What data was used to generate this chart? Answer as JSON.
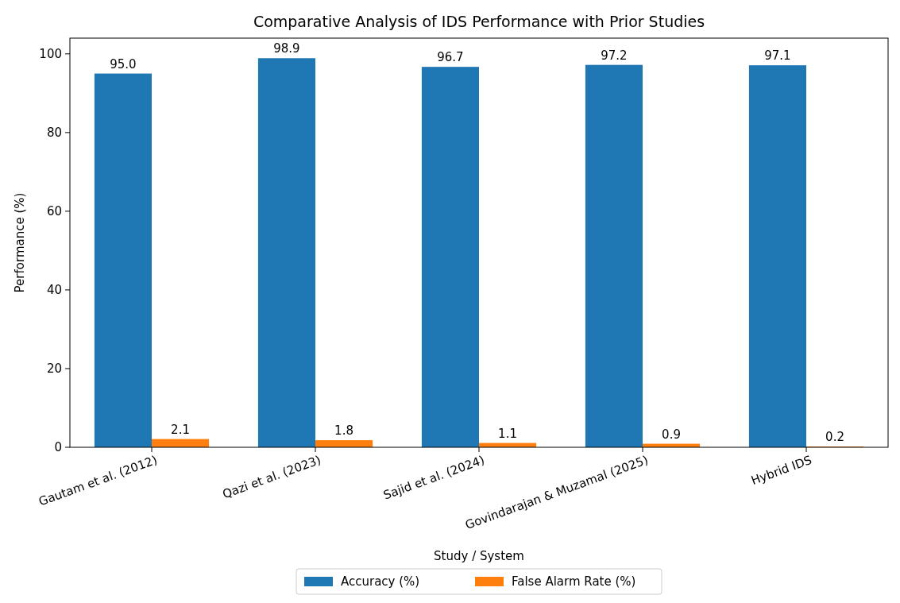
{
  "chart_data": {
    "type": "bar",
    "title": "Comparative Analysis of IDS Performance with Prior Studies",
    "xlabel": "Study / System",
    "ylabel": "Performance (%)",
    "categories": [
      "Gautam et al. (2012)",
      "Qazi et al. (2023)",
      "Sajid et al. (2024)",
      "Govindarajan & Muzamal (2025)",
      "Hybrid IDS"
    ],
    "series": [
      {
        "name": "Accuracy (%)",
        "color": "#1f77b4",
        "values": [
          95.0,
          98.9,
          96.7,
          97.2,
          97.1
        ],
        "value_labels": [
          "95.0",
          "98.9",
          "96.7",
          "97.2",
          "97.1"
        ]
      },
      {
        "name": "False Alarm Rate (%)",
        "color": "#ff7f0e",
        "values": [
          2.1,
          1.8,
          1.1,
          0.9,
          0.2
        ],
        "value_labels": [
          "2.1",
          "1.8",
          "1.1",
          "0.9",
          "0.2"
        ]
      }
    ],
    "ylim": [
      0,
      104
    ],
    "yticks": [
      0,
      20,
      40,
      60,
      80,
      100
    ],
    "grid": false,
    "legend": "bottom"
  }
}
